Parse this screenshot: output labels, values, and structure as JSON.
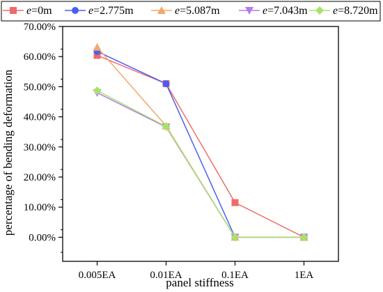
{
  "chart_data": {
    "type": "line",
    "categories": [
      "0.005EA",
      "0.01EA",
      "0.1EA",
      "1EA"
    ],
    "xlabel": "panel stiffness",
    "ylabel": "percentage of bending deformation",
    "ylim": [
      -8,
      70
    ],
    "yticks": [
      0,
      10,
      20,
      30,
      40,
      50,
      60,
      70
    ],
    "ytick_labels": [
      "0.00%",
      "10.00%",
      "20.00%",
      "30.00%",
      "40.00%",
      "50.00%",
      "60.00%",
      "70.00%"
    ],
    "grid": false,
    "legend_position": "top",
    "series": [
      {
        "name_prefix": "e",
        "name_suffix": "=0m",
        "marker": "square",
        "color": "#f06b6b",
        "values": [
          60.4,
          51.0,
          11.5,
          0.0
        ]
      },
      {
        "name_prefix": "e",
        "name_suffix": "=2.775m",
        "marker": "circle",
        "color": "#4a5ff0",
        "values": [
          61.7,
          51.0,
          0.0,
          0.0
        ]
      },
      {
        "name_prefix": "e",
        "name_suffix": "=5.087m",
        "marker": "triangle-up",
        "color": "#f5a66b",
        "values": [
          63.1,
          37.0,
          0.0,
          0.0
        ]
      },
      {
        "name_prefix": "e",
        "name_suffix": "=7.043m",
        "marker": "triangle-down",
        "color": "#b57af0",
        "values": [
          48.0,
          36.6,
          0.0,
          0.0
        ]
      },
      {
        "name_prefix": "e",
        "name_suffix": "=8.720m",
        "marker": "diamond",
        "color": "#a8e26b",
        "values": [
          48.7,
          36.8,
          0.0,
          0.0
        ]
      }
    ]
  }
}
